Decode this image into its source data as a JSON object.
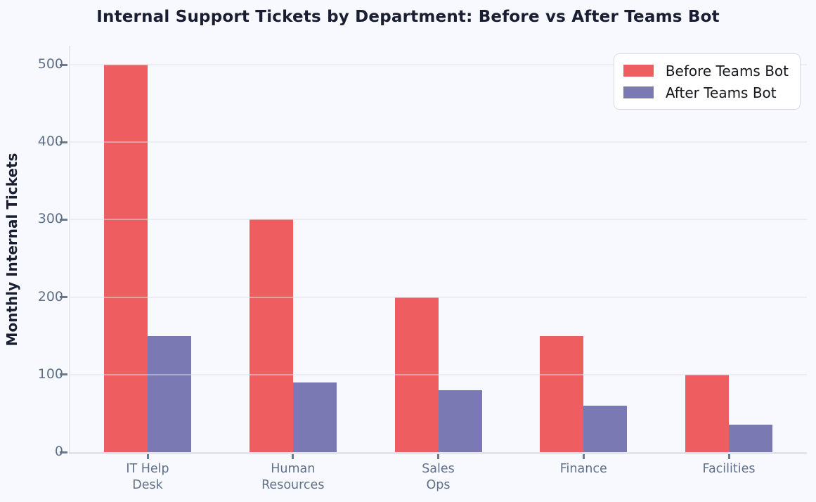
{
  "title": "Internal Support Tickets by Department: Before vs After Teams Bot",
  "chart_data": {
    "type": "bar",
    "title": "Internal Support Tickets by Department: Before vs After Teams Bot",
    "xlabel": "",
    "ylabel": "Monthly Internal Tickets",
    "categories": [
      "IT Help\nDesk",
      "Human\nResources",
      "Sales\nOps",
      "Finance",
      "Facilities"
    ],
    "series": [
      {
        "name": "Before Teams Bot",
        "color": "#EE5D60",
        "values": [
          500,
          300,
          200,
          150,
          100
        ]
      },
      {
        "name": "After Teams Bot",
        "color": "#7A79B3",
        "values": [
          150,
          90,
          80,
          60,
          35
        ]
      }
    ],
    "ylim": [
      0,
      500
    ],
    "yticks": [
      0,
      100,
      200,
      300,
      400,
      500
    ],
    "grid": "horizontal",
    "legend_position": "upper right"
  },
  "colors": {
    "background": "#F8F9FE",
    "before_bar": "#EE5D60",
    "after_bar": "#7A79B3",
    "title_text": "#1A1E33",
    "tick_text": "#5F7089",
    "spine": "#E3E4E9"
  }
}
